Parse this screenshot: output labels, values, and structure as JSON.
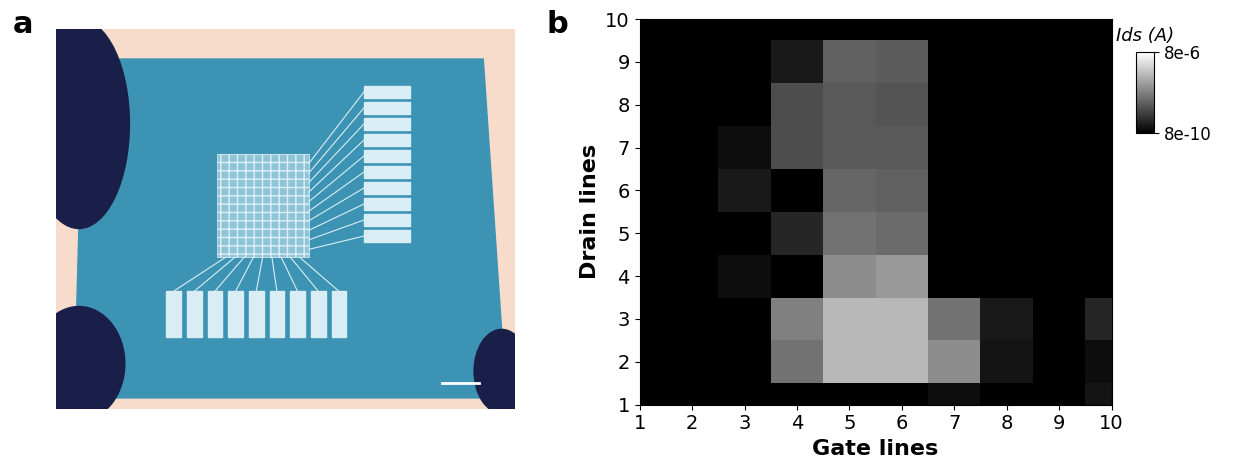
{
  "chart_data": {
    "type": "heatmap",
    "annotations": [
      "a",
      "b"
    ],
    "x_label": "Gate lines",
    "y_label": "Drain lines",
    "x": [
      1,
      2,
      3,
      4,
      5,
      6,
      7,
      8,
      9,
      10
    ],
    "y": [
      1,
      2,
      3,
      4,
      5,
      6,
      7,
      8,
      9,
      10
    ],
    "xlim": [
      1,
      10
    ],
    "ylim": [
      1,
      10
    ],
    "xticks": [
      1,
      2,
      3,
      4,
      5,
      6,
      7,
      8,
      9,
      10
    ],
    "yticks": [
      1,
      2,
      3,
      4,
      5,
      6,
      7,
      8,
      9,
      10
    ],
    "cells": [
      [
        8e-10,
        8e-10,
        8e-10,
        8e-10,
        8e-10,
        8e-10,
        1.3e-09,
        8e-10,
        8e-10,
        1.7e-09
      ],
      [
        8e-10,
        8e-10,
        8e-10,
        5e-08,
        6.1e-07,
        6.1e-07,
        1.3e-07,
        1.7e-09,
        8e-10,
        1.3e-09
      ],
      [
        8e-10,
        8e-10,
        8e-10,
        8e-08,
        6.1e-07,
        6.1e-07,
        5e-08,
        2e-09,
        8e-10,
        3.2e-09
      ],
      [
        8e-10,
        8e-10,
        1.3e-09,
        8e-10,
        1.3e-07,
        2e-07,
        8e-10,
        8e-10,
        8e-10,
        8e-10
      ],
      [
        8e-10,
        8e-10,
        8e-10,
        3.2e-09,
        5e-08,
        3.8e-08,
        8e-10,
        8e-10,
        8e-10,
        8e-10
      ],
      [
        8e-10,
        8e-10,
        2e-09,
        8e-10,
        3.2e-08,
        2.6e-08,
        8e-10,
        8e-10,
        8e-10,
        8e-10
      ],
      [
        8e-10,
        8e-10,
        1.3e-09,
        1.3e-08,
        2e-08,
        2e-08,
        8e-10,
        8e-10,
        8e-10,
        8e-10
      ],
      [
        8e-10,
        8e-10,
        8e-10,
        1.3e-08,
        2e-08,
        1.7e-08,
        8e-10,
        8e-10,
        8e-10,
        8e-10
      ],
      [
        8e-10,
        8e-10,
        8e-10,
        2e-09,
        2.6e-08,
        2.2e-08,
        8e-10,
        8e-10,
        8e-10,
        8e-10
      ],
      [
        8e-10,
        8e-10,
        8e-10,
        8e-10,
        8e-10,
        8e-10,
        8e-10,
        8e-10,
        8e-10,
        8e-10
      ]
    ],
    "log": true,
    "color": "gray",
    "colorbar": {
      "title": "Ids (A)",
      "range": [
        8e-10,
        8e-06
      ],
      "ticks": [
        {
          "value": 8e-06,
          "label": "8e-6"
        },
        {
          "value": 8e-10,
          "label": "8e-10"
        }
      ]
    }
  }
}
